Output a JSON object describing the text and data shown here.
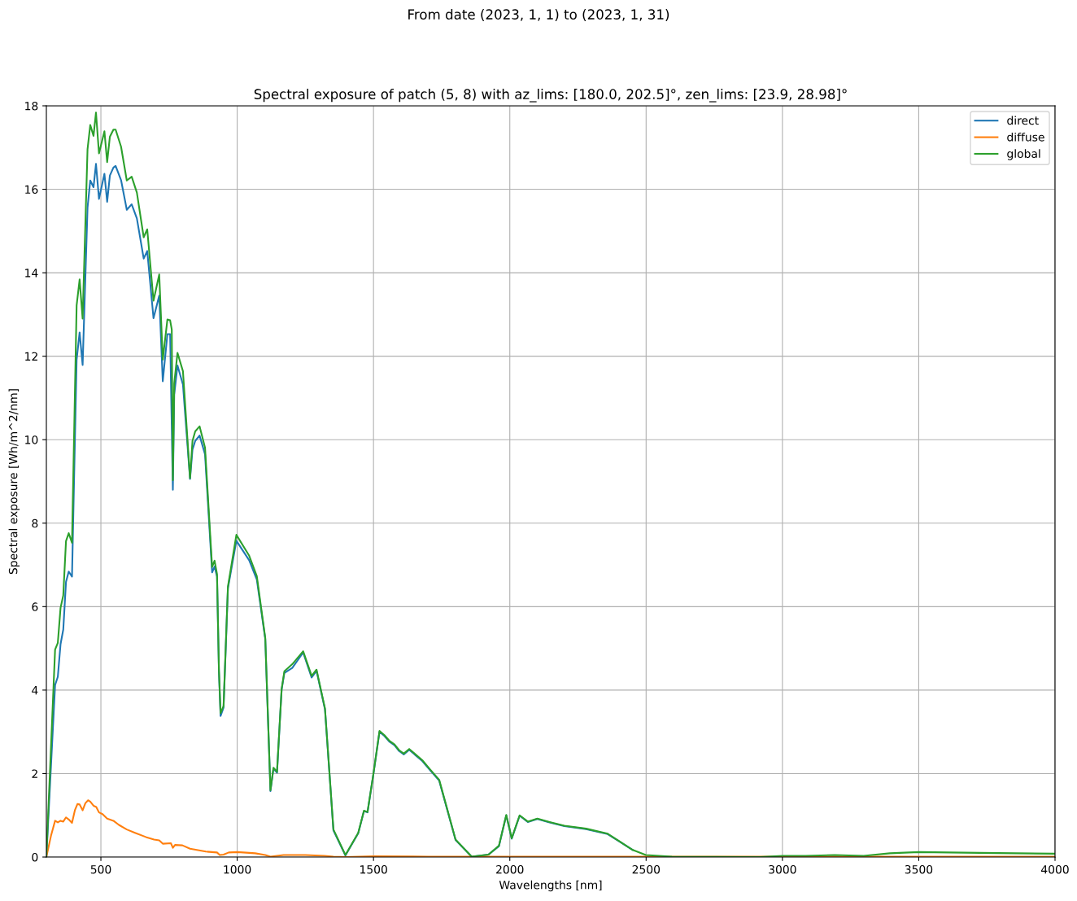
{
  "chart_data": {
    "type": "line",
    "title": "From date (2023, 1, 1) to (2023, 1, 31)",
    "subtitle": "Spectral exposure of patch (5, 8) with az_lims: [180.0, 202.5]°, zen_lims: [23.9, 28.98]°",
    "xlabel": "Wavelengths [nm]",
    "ylabel": "Spectral exposure [Wh/m^2/nm]",
    "xlim": [
      300,
      4000
    ],
    "xticks": [
      500,
      1000,
      1500,
      2000,
      2500,
      3000,
      3500,
      4000
    ],
    "ylim": [
      0,
      18
    ],
    "yticks": [
      0,
      2,
      4,
      6,
      8,
      10,
      12,
      14,
      16,
      18
    ],
    "grid": true,
    "legend": "top right",
    "line_style": "solid",
    "marker": "none",
    "series": [
      {
        "name": "direct",
        "color": "#1f77b4",
        "x": [
          300,
          332,
          342,
          352,
          362,
          372,
          382,
          394,
          411,
          422,
          433,
          451,
          461,
          473,
          482,
          493,
          513,
          523,
          533,
          546,
          554,
          574,
          595,
          613,
          632,
          657,
          670,
          693,
          714,
          727,
          744,
          754,
          764,
          769,
          781,
          801,
          827,
          836,
          846,
          862,
          882,
          908,
          917,
          926,
          933,
          939,
          950,
          966,
          997,
          1044,
          1072,
          1103,
          1122,
          1133,
          1146,
          1163,
          1173,
          1202,
          1242,
          1273,
          1291,
          1322,
          1353,
          1397,
          1444,
          1465,
          1478,
          1500,
          1522,
          1540,
          1559,
          1577,
          1594,
          1611,
          1631,
          1654,
          1679,
          1709,
          1741,
          1801,
          1860,
          1922,
          1960,
          1987,
          2007,
          2036,
          2066,
          2101,
          2146,
          2200,
          2280,
          2359,
          2451
        ],
        "values": [
          0,
          4.12,
          4.32,
          5.1,
          5.45,
          6.59,
          6.84,
          6.72,
          11.92,
          12.57,
          11.79,
          15.56,
          16.21,
          16.05,
          16.61,
          15.77,
          16.37,
          15.7,
          16.33,
          16.52,
          16.56,
          16.22,
          15.51,
          15.64,
          15.3,
          14.34,
          14.52,
          12.91,
          13.45,
          11.4,
          12.53,
          12.53,
          8.8,
          11.08,
          11.78,
          11.32,
          9.06,
          9.76,
          9.97,
          10.1,
          9.65,
          6.82,
          6.96,
          6.72,
          4.45,
          3.38,
          3.58,
          6.44,
          7.58,
          7.11,
          6.65,
          5.22,
          1.58,
          2.12,
          2.02,
          4.01,
          4.41,
          4.53,
          4.9,
          4.3,
          4.46,
          3.54,
          0.64,
          0.04,
          0.57,
          1.1,
          1.07,
          2.0,
          3.0,
          2.9,
          2.76,
          2.68,
          2.54,
          2.46,
          2.57,
          2.44,
          2.3,
          2.07,
          1.83,
          0.41,
          0.01,
          0.06,
          0.26,
          1.0,
          0.44,
          0.99,
          0.84,
          0.91,
          0.83,
          0.74,
          0.67,
          0.55,
          0.17
        ]
      },
      {
        "name": "diffuse",
        "color": "#ff7f0e",
        "x": [
          300,
          317,
          332,
          342,
          352,
          362,
          372,
          382,
          394,
          405,
          414,
          422,
          433,
          443,
          453,
          461,
          473,
          483,
          493,
          506,
          523,
          546,
          566,
          595,
          625,
          665,
          695,
          714,
          727,
          757,
          764,
          772,
          799,
          827,
          885,
          926,
          936,
          950,
          969,
          1001,
          1066,
          1103,
          1122,
          1146,
          1170,
          1250,
          1320,
          1353,
          1397,
          1500,
          1700,
          2200,
          4000
        ],
        "values": [
          0,
          0.51,
          0.87,
          0.83,
          0.87,
          0.85,
          0.95,
          0.9,
          0.82,
          1.13,
          1.27,
          1.26,
          1.12,
          1.29,
          1.36,
          1.33,
          1.23,
          1.2,
          1.07,
          1.03,
          0.92,
          0.87,
          0.77,
          0.66,
          0.58,
          0.48,
          0.42,
          0.4,
          0.32,
          0.33,
          0.22,
          0.29,
          0.28,
          0.2,
          0.13,
          0.11,
          0.05,
          0.06,
          0.11,
          0.12,
          0.09,
          0.05,
          0.01,
          0.03,
          0.05,
          0.05,
          0.03,
          0.01,
          0,
          0.02,
          0.01,
          0.01,
          0.01
        ]
      },
      {
        "name": "global",
        "color": "#2ca02c",
        "x": [
          300,
          332,
          342,
          352,
          362,
          372,
          382,
          394,
          411,
          422,
          433,
          451,
          461,
          473,
          482,
          493,
          513,
          523,
          533,
          546,
          554,
          574,
          595,
          613,
          632,
          657,
          670,
          693,
          714,
          727,
          744,
          754,
          760,
          764,
          769,
          781,
          801,
          827,
          836,
          846,
          862,
          882,
          908,
          917,
          926,
          933,
          939,
          950,
          966,
          997,
          1044,
          1072,
          1103,
          1122,
          1133,
          1146,
          1163,
          1173,
          1202,
          1242,
          1273,
          1291,
          1322,
          1353,
          1397,
          1444,
          1465,
          1478,
          1500,
          1522,
          1540,
          1559,
          1577,
          1594,
          1611,
          1631,
          1654,
          1679,
          1709,
          1741,
          1801,
          1860,
          1922,
          1960,
          1987,
          2007,
          2036,
          2066,
          2101,
          2146,
          2200,
          2280,
          2359,
          2451,
          2499,
          2595,
          2915,
          3001,
          3085,
          3192,
          3298,
          3394,
          3500,
          3724,
          4000
        ],
        "values": [
          0,
          4.97,
          5.13,
          5.97,
          6.27,
          7.57,
          7.76,
          7.53,
          13.22,
          13.84,
          12.9,
          16.96,
          17.54,
          17.28,
          17.84,
          16.86,
          17.39,
          16.65,
          17.26,
          17.43,
          17.43,
          17.02,
          16.21,
          16.3,
          15.92,
          14.85,
          15.04,
          13.33,
          13.96,
          11.92,
          12.88,
          12.86,
          12.64,
          9.03,
          11.35,
          12.08,
          11.64,
          9.08,
          9.97,
          10.2,
          10.32,
          9.81,
          6.95,
          7.1,
          6.78,
          4.49,
          3.45,
          3.62,
          6.48,
          7.72,
          7.22,
          6.73,
          5.25,
          1.6,
          2.14,
          2.04,
          4.03,
          4.45,
          4.62,
          4.93,
          4.34,
          4.49,
          3.56,
          0.66,
          0.05,
          0.58,
          1.11,
          1.08,
          2.01,
          3.02,
          2.92,
          2.78,
          2.7,
          2.56,
          2.48,
          2.59,
          2.46,
          2.32,
          2.09,
          1.85,
          0.42,
          0.01,
          0.06,
          0.27,
          1.01,
          0.45,
          1.0,
          0.85,
          0.92,
          0.84,
          0.75,
          0.68,
          0.56,
          0.17,
          0.05,
          0.01,
          0,
          0.03,
          0.03,
          0.05,
          0.03,
          0.09,
          0.12,
          0.1,
          0.08
        ]
      }
    ]
  }
}
